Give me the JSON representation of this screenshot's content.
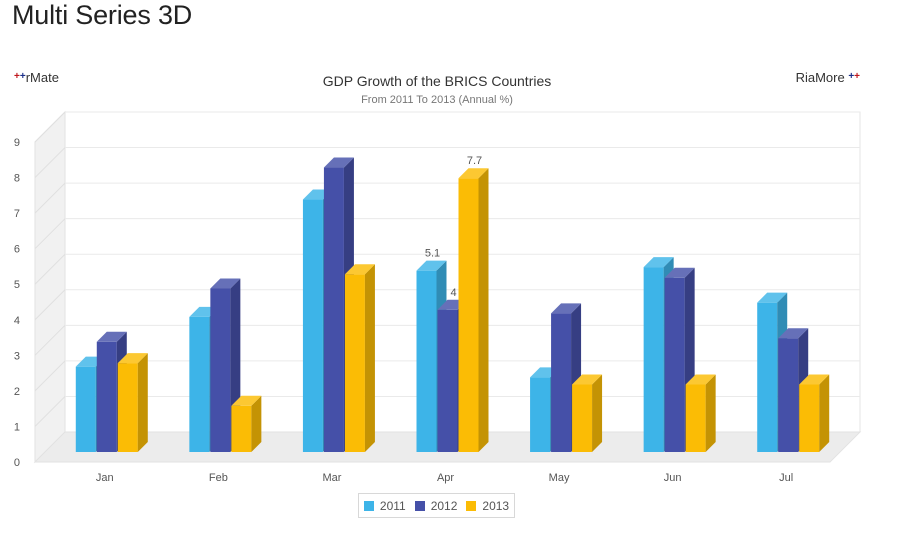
{
  "page": {
    "heading": "Multi Series 3D",
    "brand_left": "rMate",
    "brand_right": "RiaMore",
    "brand_plus": "+"
  },
  "chart_data": {
    "type": "bar",
    "style": "3d-column",
    "title": "GDP Growth of the BRICS Countries",
    "subtitle": "From 2011 To 2013 (Annual %)",
    "xlabel": "",
    "ylabel": "",
    "ylim": [
      0,
      9
    ],
    "yticks": [
      0,
      1,
      2,
      3,
      4,
      5,
      6,
      7,
      8,
      9
    ],
    "grid": true,
    "legend_position": "bottom",
    "categories": [
      "Jan",
      "Feb",
      "Mar",
      "Apr",
      "May",
      "Jun",
      "Jul"
    ],
    "series": [
      {
        "name": "2011",
        "color": "#3db4e8",
        "values": [
          2.4,
          3.8,
          7.1,
          5.1,
          2.1,
          5.2,
          4.2
        ]
      },
      {
        "name": "2012",
        "color": "#4550a8",
        "values": [
          3.1,
          4.6,
          8.0,
          4.0,
          3.9,
          4.9,
          3.2
        ]
      },
      {
        "name": "2013",
        "color": "#fbbc05",
        "values": [
          2.5,
          1.3,
          5.0,
          7.7,
          1.9,
          1.9,
          1.9
        ]
      }
    ],
    "data_labels": [
      {
        "category": "Apr",
        "series": "2011",
        "text": "5.1"
      },
      {
        "category": "Apr",
        "series": "2012",
        "text": "4"
      },
      {
        "category": "Apr",
        "series": "2013",
        "text": "7.7"
      }
    ]
  }
}
